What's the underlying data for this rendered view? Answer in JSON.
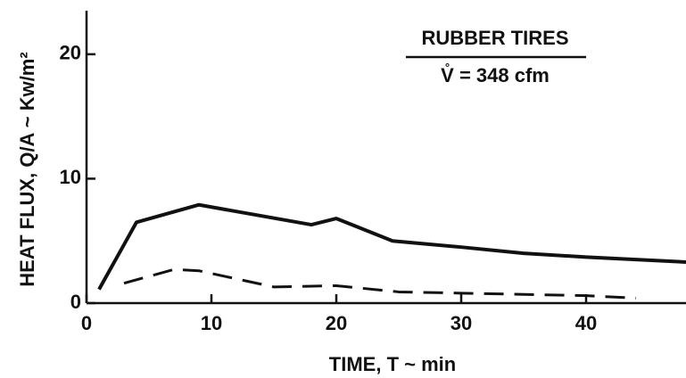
{
  "chart_data": {
    "type": "line",
    "annotations": [
      "RUBBER TIRES",
      "V̊ = 348 cfm"
    ],
    "x_label": "TIME, T ~ min",
    "y_label": "HEAT FLUX, Q/A ~ Kw/m²",
    "xlim": [
      0,
      48
    ],
    "ylim": [
      0,
      23.5
    ],
    "xticks": [
      0,
      10,
      20,
      30,
      40
    ],
    "yticks": [
      0,
      10,
      20
    ],
    "series": [
      {
        "color": "#111111",
        "style": "solid",
        "x": [
          1,
          4,
          9,
          18,
          20,
          24.5,
          30,
          35,
          40,
          48
        ],
        "values": [
          1.1,
          6.5,
          7.9,
          6.3,
          6.8,
          5.0,
          4.5,
          4.0,
          3.7,
          3.3
        ]
      },
      {
        "color": "#111111",
        "style": "dashed",
        "x": [
          3,
          7,
          9,
          15,
          20,
          25,
          30,
          40,
          44
        ],
        "values": [
          1.6,
          2.7,
          2.6,
          1.3,
          1.4,
          0.9,
          0.8,
          0.6,
          0.4
        ]
      }
    ]
  }
}
